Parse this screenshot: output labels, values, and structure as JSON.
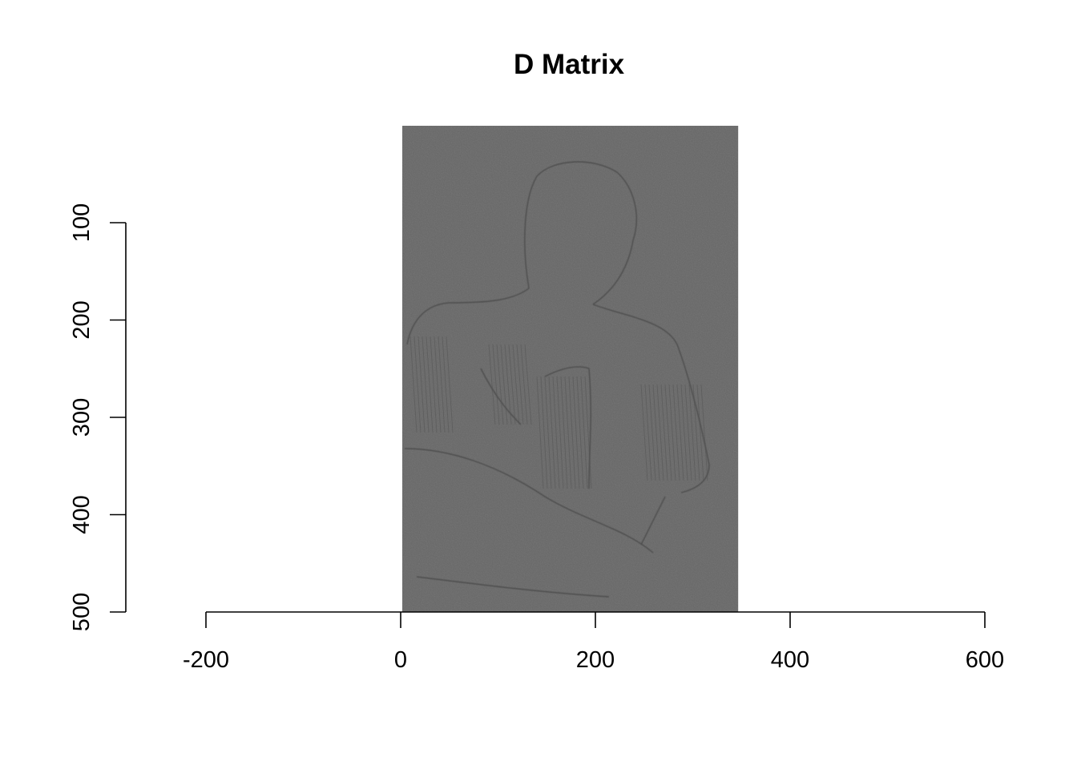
{
  "chart_data": {
    "type": "heatmap",
    "title": "D Matrix",
    "xlabel": "",
    "ylabel": "",
    "xlim": [
      -200,
      600
    ],
    "ylim": [
      500,
      100
    ],
    "x_ticks": [
      "-200",
      "0",
      "200",
      "400",
      "600"
    ],
    "y_ticks": [
      "100",
      "200",
      "300",
      "400",
      "500"
    ],
    "image_extent": {
      "x": [
        0,
        345
      ],
      "y": [
        0,
        500
      ]
    },
    "colormap": "grayscale",
    "background_gray": "#666666",
    "grid": false,
    "legend": "none"
  }
}
